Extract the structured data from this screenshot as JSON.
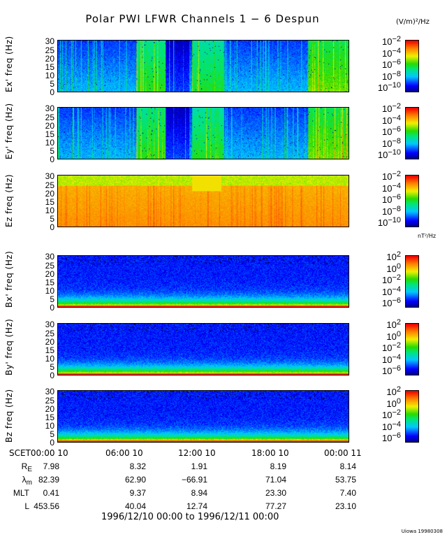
{
  "title": "Polar PWI LFWR Channels 1 − 6 Despun",
  "chart_data": {
    "type": "heatmap",
    "title": "Polar PWI LFWR Channels 1 − 6 Despun",
    "x_ticks": [
      "SCET00:00 10",
      "06:00 10",
      "12:00 10",
      "18:00 10",
      "00:00 11"
    ],
    "ylim": [
      0,
      30
    ],
    "y_ticks": [
      "0",
      "5",
      "10",
      "15",
      "20",
      "25",
      "30"
    ],
    "colormap": "rainbow (blue to red)",
    "electric_unit": "(V/m)²/Hz",
    "magnetic_unit": "nT²/Hz",
    "panels": [
      {
        "ylabel": "Ex' freq (Hz)",
        "kind": "ex",
        "colorbar": {
          "base": "10",
          "exponents": [
            "-2",
            "-4",
            "-6",
            "-8",
            "-10"
          ],
          "range": [
            1e-10,
            0.01
          ]
        }
      },
      {
        "ylabel": "Ey' freq (Hz)",
        "kind": "ey",
        "colorbar": {
          "base": "10",
          "exponents": [
            "-2",
            "-4",
            "-6",
            "-8",
            "-10"
          ],
          "range": [
            1e-10,
            0.01
          ]
        }
      },
      {
        "ylabel": "Ez freq (Hz)",
        "kind": "ez",
        "colorbar": {
          "base": "10",
          "exponents": [
            "-2",
            "-4",
            "-6",
            "-8",
            "-10"
          ],
          "range": [
            1e-10,
            0.01
          ]
        }
      },
      {
        "ylabel": "Bx' freq (Hz)",
        "kind": "b",
        "colorbar": {
          "base": "10",
          "exponents": [
            "2",
            "0",
            "-2",
            "-4",
            "-6"
          ],
          "range": [
            1e-06,
            100.0
          ]
        }
      },
      {
        "ylabel": "By' freq (Hz)",
        "kind": "b",
        "colorbar": {
          "base": "10",
          "exponents": [
            "2",
            "0",
            "-2",
            "-4",
            "-6"
          ],
          "range": [
            1e-06,
            100.0
          ]
        }
      },
      {
        "ylabel": "Bz freq (Hz)",
        "kind": "b",
        "colorbar": {
          "base": "10",
          "exponents": [
            "2",
            "0",
            "-2",
            "-4",
            "-6"
          ],
          "range": [
            1e-06,
            100.0
          ]
        }
      }
    ]
  },
  "ephemeris": {
    "rows": [
      {
        "label": "R",
        "sub": "E",
        "values": [
          "7.98",
          "8.32",
          "1.91",
          "8.19",
          "8.14"
        ]
      },
      {
        "label": "λ",
        "sub": "m",
        "values": [
          "82.39",
          "62.90",
          "−66.91",
          "71.04",
          "53.75"
        ]
      },
      {
        "label": "MLT",
        "sub": "",
        "values": [
          "0.41",
          "9.37",
          "8.94",
          "23.30",
          "7.40"
        ]
      },
      {
        "label": "L",
        "sub": "",
        "values": [
          "453.56",
          "40.04",
          "12.74",
          "77.27",
          "23.10"
        ]
      }
    ]
  },
  "date_range": "1996/12/10 00:00 to 1996/12/11 00:00",
  "credit": "Uiowa 19980308"
}
